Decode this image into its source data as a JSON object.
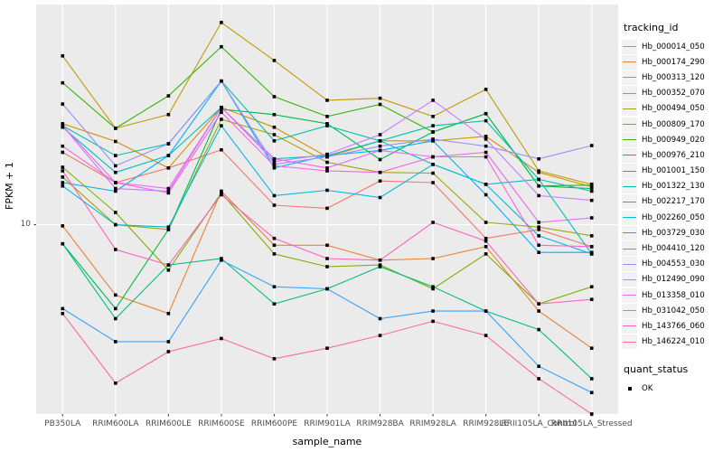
{
  "chart_data": {
    "type": "line",
    "title": "",
    "xlabel": "sample_name",
    "ylabel": "FPKM + 1",
    "y_scale": "log10",
    "ylim": [
      2,
      65
    ],
    "y_ticks": [
      {
        "value": 10,
        "label": "10"
      }
    ],
    "grid": "major-white-on-gray",
    "legend_position": "right",
    "x": [
      "PB350LA",
      "RRIM600LA",
      "RRIM600LE",
      "RRIM600SE",
      "RRIM600PE",
      "RRIM901LA",
      "RRIM928BA",
      "RRIM928LA",
      "RRIM928LE",
      "RRII105LA_Control",
      "RRII105LA_Stressed"
    ],
    "series": [
      {
        "name": "Hb_000014_050",
        "color": "#F8766D",
        "values": [
          18.5,
          14.3,
          16.2,
          18.9,
          11.8,
          11.5,
          14.5,
          14.3,
          8.9,
          9.6,
          8.3
        ]
      },
      {
        "name": "Hb_000174_290",
        "color": "#EA8331",
        "values": [
          9.9,
          5.5,
          4.7,
          13.3,
          8.4,
          8.4,
          7.4,
          7.5,
          8.3,
          4.8,
          3.5
        ]
      },
      {
        "name": "Hb_000313_120",
        "color": "#D89000",
        "values": [
          23.6,
          20.3,
          16.2,
          27.1,
          22.9,
          17.8,
          20.4,
          20.4,
          21.2,
          15.6,
          13.8
        ]
      },
      {
        "name": "Hb_000352_070",
        "color": "#C09B00",
        "values": [
          42,
          22.7,
          25.5,
          55.8,
          40.4,
          28.8,
          29.3,
          25.1,
          31.6,
          15.8,
          14.1
        ]
      },
      {
        "name": "Hb_000494_050",
        "color": "#A3A500",
        "values": [
          15,
          10,
          9.6,
          24.5,
          21.5,
          17,
          15.6,
          15.5,
          10.2,
          9.8,
          9.1
        ]
      },
      {
        "name": "Hb_000809_170",
        "color": "#7CAE00",
        "values": [
          16.3,
          11.1,
          6.8,
          13.1,
          7.8,
          7,
          7.1,
          5.8,
          7.8,
          5.1,
          5.9
        ]
      },
      {
        "name": "Hb_000949_020",
        "color": "#39B600",
        "values": [
          33.4,
          22.7,
          29.9,
          45.4,
          29.7,
          25.1,
          27.8,
          22,
          25.7,
          13.9,
          14
        ]
      },
      {
        "name": "Hb_000976_210",
        "color": "#00BB4E",
        "values": [
          8.5,
          4.9,
          9.6,
          26.7,
          25.5,
          23.6,
          17.4,
          22,
          25.7,
          13.9,
          13.6
        ]
      },
      {
        "name": "Hb_001001_150",
        "color": "#00BF7D",
        "values": [
          8.5,
          4.5,
          7.1,
          7.5,
          5.1,
          5.8,
          7,
          5.9,
          4.8,
          4.1,
          2.7
        ]
      },
      {
        "name": "Hb_001322_130",
        "color": "#00C1A3",
        "values": [
          23.2,
          18,
          19.9,
          33.9,
          20.4,
          23.2,
          20.4,
          23.2,
          24.2,
          14.7,
          13.3
        ]
      },
      {
        "name": "Hb_002217_170",
        "color": "#00BFC4",
        "values": [
          22.9,
          15.6,
          18,
          27.1,
          17.5,
          18,
          20.4,
          16.7,
          14.1,
          14.7,
          7.8
        ]
      },
      {
        "name": "Hb_002260_050",
        "color": "#00BAE0",
        "values": [
          13.9,
          10,
          9.8,
          23.2,
          12.8,
          13.4,
          12.6,
          16.7,
          14.1,
          9.1,
          7.8
        ]
      },
      {
        "name": "Hb_003729_030",
        "color": "#00B0F6",
        "values": [
          14.3,
          13.3,
          18,
          33.9,
          16.2,
          18,
          18.8,
          20.4,
          12.9,
          7.9,
          7.9
        ]
      },
      {
        "name": "Hb_004410_120",
        "color": "#35A2FF",
        "values": [
          4.9,
          3.7,
          3.7,
          7.4,
          5.9,
          5.8,
          4.5,
          4.8,
          4.8,
          3,
          2.4
        ]
      },
      {
        "name": "Hb_004553_030",
        "color": "#9590FF",
        "values": [
          27.9,
          16.5,
          19.9,
          33.9,
          16.7,
          17.8,
          19.5,
          20.7,
          19.5,
          17.5,
          19.6
        ]
      },
      {
        "name": "Hb_012490_090",
        "color": "#C77CFF",
        "values": [
          23.2,
          13.6,
          13.3,
          27.1,
          17.1,
          18.2,
          21.5,
          28.8,
          20.7,
          12.8,
          12.3
        ]
      },
      {
        "name": "Hb_013358_010",
        "color": "#E76BF3",
        "values": [
          23.2,
          14.3,
          13.6,
          27.1,
          17.5,
          16.2,
          18.8,
          17.8,
          18.5,
          10.2,
          10.6
        ]
      },
      {
        "name": "Hb_031042_050",
        "color": "#FA62DB",
        "values": [
          19.5,
          14.3,
          13.1,
          26,
          16.5,
          15.8,
          15.6,
          17.8,
          17.8,
          8.4,
          8.3
        ]
      },
      {
        "name": "Hb_143766_060",
        "color": "#FF62BC",
        "values": [
          15.8,
          8.1,
          7.1,
          12.9,
          8.9,
          7.5,
          7.4,
          10.2,
          8.7,
          5.1,
          5.3
        ]
      },
      {
        "name": "Hb_146224_010",
        "color": "#FF6A98",
        "values": [
          4.7,
          2.6,
          3.4,
          3.8,
          3.2,
          3.5,
          3.9,
          4.4,
          3.9,
          2.7,
          2
        ]
      }
    ]
  },
  "legend": {
    "tracking_title": "tracking_id",
    "quant_title": "quant_status",
    "quant_ok_label": "OK"
  },
  "colors": {
    "panel_bg": "#EBEBEB",
    "gridline": "#FFFFFF",
    "marker": "#000000",
    "tick_text": "#4D4D4D",
    "axis_title_text": "#000000"
  }
}
